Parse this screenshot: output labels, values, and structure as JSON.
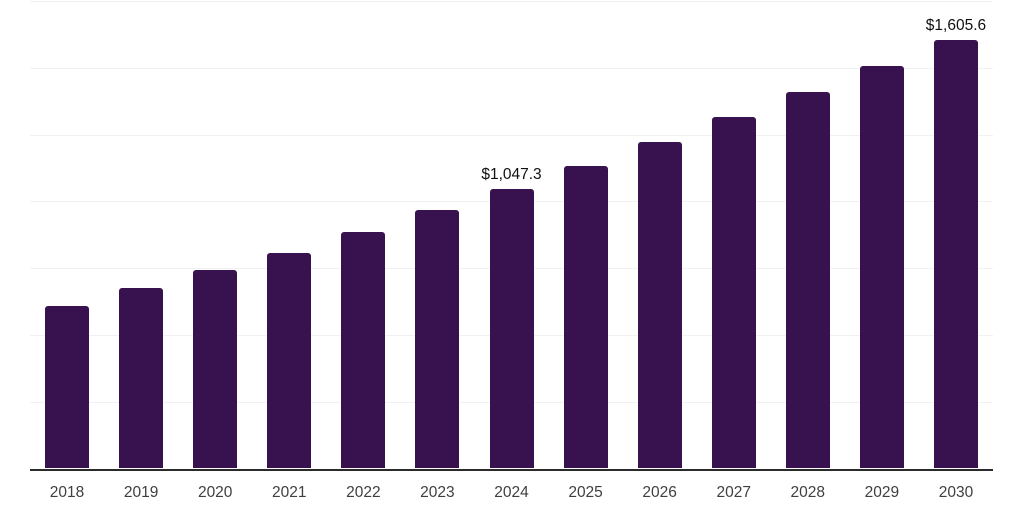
{
  "chart_data": {
    "type": "bar",
    "title": "",
    "xlabel": "",
    "ylabel": "",
    "categories": [
      "2018",
      "2019",
      "2020",
      "2021",
      "2022",
      "2023",
      "2024",
      "2025",
      "2026",
      "2027",
      "2028",
      "2029",
      "2030"
    ],
    "values": [
      608,
      677,
      744,
      806,
      886,
      968,
      1047.3,
      1134,
      1221,
      1317,
      1411,
      1508,
      1605.6
    ],
    "data_labels": {
      "2024": "$1,047.3",
      "2030": "$1,605.6"
    },
    "ylim": [
      0,
      1750
    ],
    "grid_step": 250,
    "grid": "horizontal",
    "y_tick_labels_visible": false,
    "legend": "none",
    "colors": {
      "bar": "#38124f",
      "gridline": "#f1f1f3",
      "axis": "#2b2b2b",
      "value_label": "#111111",
      "tick_label": "#3f3f3f",
      "background": "#ffffff"
    }
  }
}
